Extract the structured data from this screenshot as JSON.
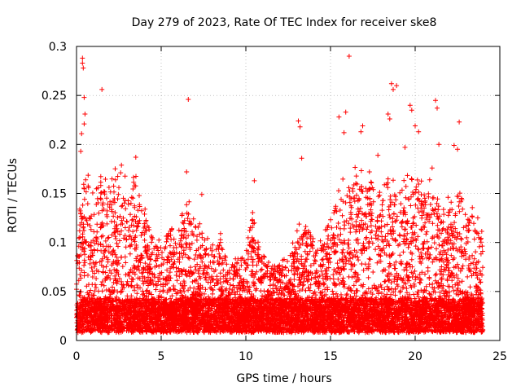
{
  "chart_data": {
    "type": "scatter",
    "title": "Day 279 of 2023, Rate Of TEC Index for receiver ske8",
    "xlabel": "GPS time / hours",
    "ylabel": "ROTI / TECUs",
    "xlim": [
      0,
      25
    ],
    "ylim": [
      0,
      0.3
    ],
    "x_ticks": [
      0,
      5,
      10,
      15,
      20,
      25
    ],
    "x_tick_labels": [
      "0",
      "5",
      "10",
      "15",
      "20",
      "25"
    ],
    "y_ticks": [
      0,
      0.05,
      0.1,
      0.15,
      0.2,
      0.25,
      0.3
    ],
    "y_tick_labels": [
      "0",
      "0.05",
      "0.1",
      "0.15",
      "0.2",
      "0.25",
      "0.3"
    ],
    "grid": true,
    "marker": "plus",
    "color": "#ff0000",
    "highlight_points": [
      {
        "x": 0.35,
        "y": 0.288
      },
      {
        "x": 0.35,
        "y": 0.283
      },
      {
        "x": 0.4,
        "y": 0.278
      },
      {
        "x": 0.45,
        "y": 0.248
      },
      {
        "x": 0.5,
        "y": 0.231
      },
      {
        "x": 0.45,
        "y": 0.221
      },
      {
        "x": 0.3,
        "y": 0.211
      },
      {
        "x": 0.25,
        "y": 0.193
      },
      {
        "x": 1.5,
        "y": 0.256
      },
      {
        "x": 3.5,
        "y": 0.187
      },
      {
        "x": 6.6,
        "y": 0.246
      },
      {
        "x": 6.5,
        "y": 0.172
      },
      {
        "x": 7.4,
        "y": 0.149
      },
      {
        "x": 10.5,
        "y": 0.163
      },
      {
        "x": 13.1,
        "y": 0.224
      },
      {
        "x": 13.2,
        "y": 0.218
      },
      {
        "x": 13.3,
        "y": 0.186
      },
      {
        "x": 15.5,
        "y": 0.228
      },
      {
        "x": 15.9,
        "y": 0.233
      },
      {
        "x": 15.8,
        "y": 0.212
      },
      {
        "x": 16.1,
        "y": 0.29
      },
      {
        "x": 16.9,
        "y": 0.219
      },
      {
        "x": 16.8,
        "y": 0.213
      },
      {
        "x": 17.3,
        "y": 0.172
      },
      {
        "x": 18.6,
        "y": 0.262
      },
      {
        "x": 18.7,
        "y": 0.256
      },
      {
        "x": 18.9,
        "y": 0.26
      },
      {
        "x": 18.4,
        "y": 0.231
      },
      {
        "x": 18.5,
        "y": 0.226
      },
      {
        "x": 19.7,
        "y": 0.24
      },
      {
        "x": 19.8,
        "y": 0.235
      },
      {
        "x": 19.4,
        "y": 0.197
      },
      {
        "x": 20.0,
        "y": 0.219
      },
      {
        "x": 21.2,
        "y": 0.245
      },
      {
        "x": 21.3,
        "y": 0.237
      },
      {
        "x": 21.4,
        "y": 0.2
      },
      {
        "x": 22.3,
        "y": 0.199
      },
      {
        "x": 22.5,
        "y": 0.195
      },
      {
        "x": 22.6,
        "y": 0.223
      },
      {
        "x": 21.0,
        "y": 0.176
      },
      {
        "x": 20.2,
        "y": 0.213
      },
      {
        "x": 17.8,
        "y": 0.189
      }
    ],
    "activity_profile": [
      {
        "x": 0,
        "y": 0.1
      },
      {
        "x": 0.5,
        "y": 0.16
      },
      {
        "x": 1,
        "y": 0.13
      },
      {
        "x": 1.5,
        "y": 0.15
      },
      {
        "x": 2,
        "y": 0.14
      },
      {
        "x": 2.5,
        "y": 0.17
      },
      {
        "x": 3,
        "y": 0.14
      },
      {
        "x": 3.5,
        "y": 0.15
      },
      {
        "x": 4,
        "y": 0.12
      },
      {
        "x": 4.5,
        "y": 0.09
      },
      {
        "x": 5,
        "y": 0.08
      },
      {
        "x": 5.5,
        "y": 0.1
      },
      {
        "x": 6,
        "y": 0.09
      },
      {
        "x": 6.5,
        "y": 0.13
      },
      {
        "x": 7,
        "y": 0.11
      },
      {
        "x": 7.5,
        "y": 0.09
      },
      {
        "x": 8,
        "y": 0.08
      },
      {
        "x": 8.5,
        "y": 0.09
      },
      {
        "x": 9,
        "y": 0.07
      },
      {
        "x": 9.5,
        "y": 0.07
      },
      {
        "x": 10,
        "y": 0.08
      },
      {
        "x": 10.5,
        "y": 0.12
      },
      {
        "x": 11,
        "y": 0.07
      },
      {
        "x": 11.5,
        "y": 0.06
      },
      {
        "x": 12,
        "y": 0.06
      },
      {
        "x": 12.5,
        "y": 0.07
      },
      {
        "x": 13,
        "y": 0.1
      },
      {
        "x": 13.5,
        "y": 0.11
      },
      {
        "x": 14,
        "y": 0.09
      },
      {
        "x": 14.5,
        "y": 0.08
      },
      {
        "x": 15,
        "y": 0.12
      },
      {
        "x": 15.5,
        "y": 0.15
      },
      {
        "x": 16,
        "y": 0.14
      },
      {
        "x": 16.5,
        "y": 0.16
      },
      {
        "x": 17,
        "y": 0.15
      },
      {
        "x": 17.5,
        "y": 0.14
      },
      {
        "x": 18,
        "y": 0.13
      },
      {
        "x": 18.5,
        "y": 0.17
      },
      {
        "x": 19,
        "y": 0.14
      },
      {
        "x": 19.5,
        "y": 0.15
      },
      {
        "x": 20,
        "y": 0.16
      },
      {
        "x": 20.5,
        "y": 0.14
      },
      {
        "x": 21,
        "y": 0.15
      },
      {
        "x": 21.5,
        "y": 0.12
      },
      {
        "x": 22,
        "y": 0.13
      },
      {
        "x": 22.5,
        "y": 0.14
      },
      {
        "x": 23,
        "y": 0.11
      },
      {
        "x": 23.5,
        "y": 0.12
      },
      {
        "x": 24,
        "y": 0.09
      }
    ]
  }
}
